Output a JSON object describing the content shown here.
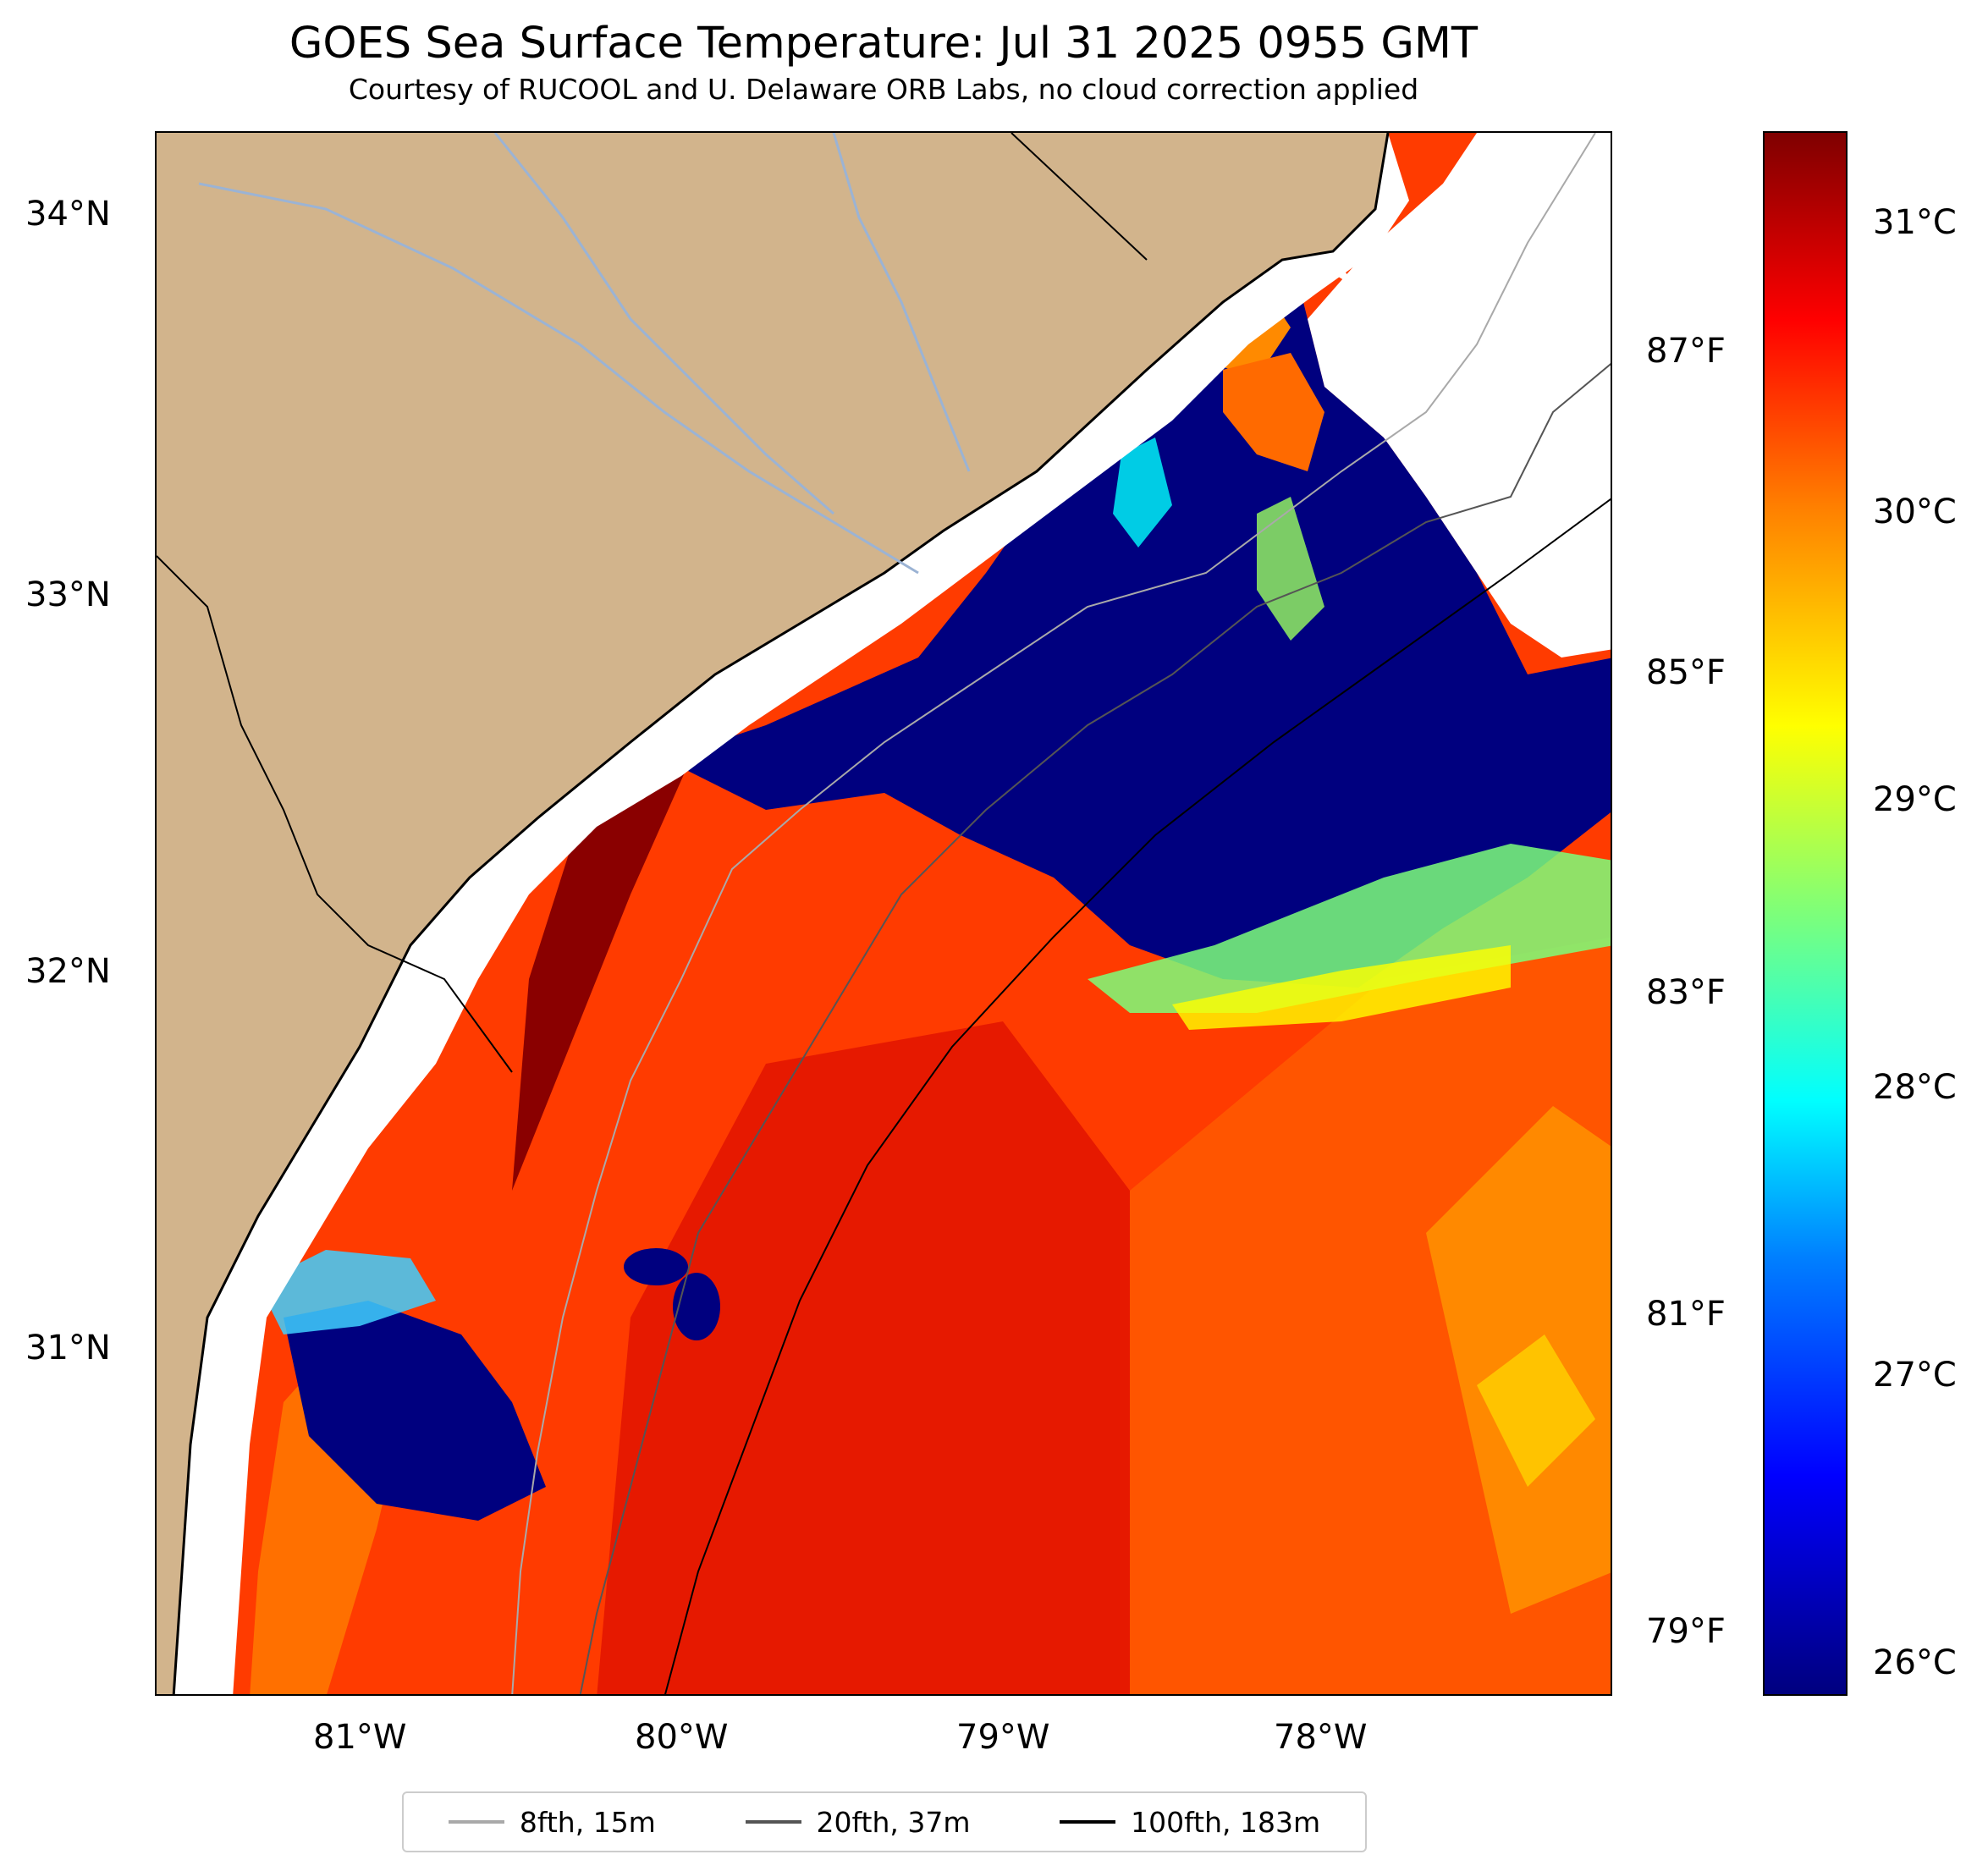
{
  "title": "GOES Sea Surface Temperature: Jul 31 2025 0955 GMT",
  "subtitle": "Courtesy of RUCOOL and U. Delaware ORB Labs, no cloud correction applied",
  "map": {
    "region": "South Carolina / Georgia coast",
    "lat_range": [
      30.1,
      34.2
    ],
    "lon_range": [
      -81.65,
      -77.1
    ],
    "lat_ticks": [
      "34°N",
      "33°N",
      "32°N",
      "31°N"
    ],
    "lon_ticks": [
      "81°W",
      "80°W",
      "79°W",
      "78°W"
    ],
    "fahrenheit_ticks": [
      "87°F",
      "85°F",
      "83°F",
      "81°F",
      "79°F"
    ],
    "colors": {
      "land": "#d2b48c",
      "rivers": "#9bb3d4",
      "no_data": "#ffffff",
      "cold": "#00007f",
      "warm": "#ff3300",
      "hot": "#7f0000"
    }
  },
  "colorbar": {
    "colormap": "jet",
    "unit": "°C",
    "range": [
      25.8,
      31.5
    ],
    "tick_labels": [
      "31°C",
      "30°C",
      "29°C",
      "28°C",
      "27°C",
      "26°C"
    ]
  },
  "legend": {
    "items": [
      {
        "label": "8fth, 15m",
        "color": "#a9a9a9"
      },
      {
        "label": "20fth, 37m",
        "color": "#555555"
      },
      {
        "label": "100fth, 183m",
        "color": "#000000"
      }
    ]
  }
}
